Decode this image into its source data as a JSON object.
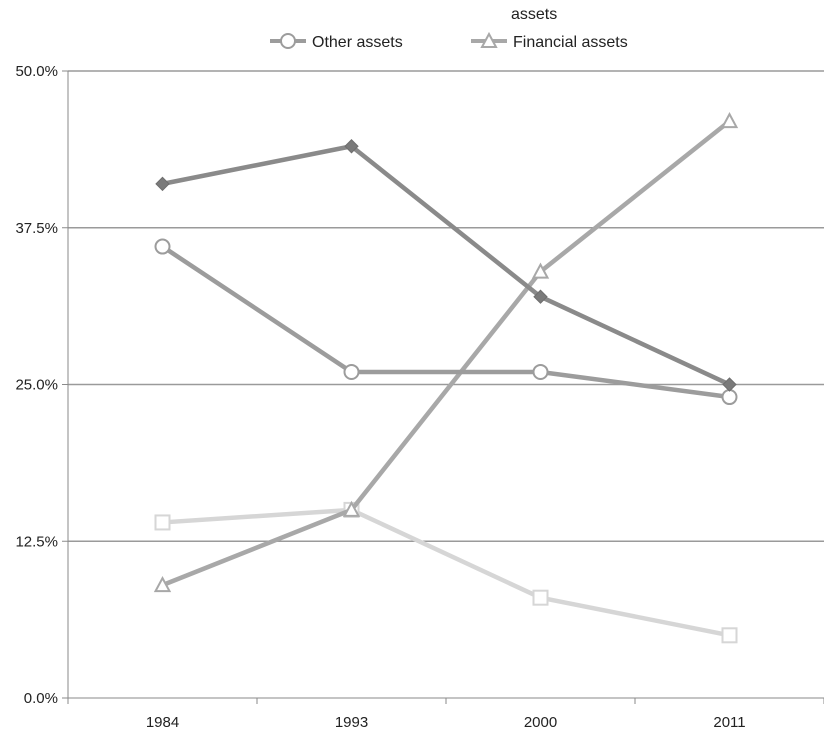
{
  "chart_data": {
    "type": "line",
    "categories": [
      "1984",
      "1993",
      "2000",
      "2011"
    ],
    "y_tick_labels": [
      "0.0%",
      "12.5%",
      "25.0%",
      "37.5%",
      "50.0%"
    ],
    "ylim": [
      0,
      50
    ],
    "y_unit": "%",
    "grid": "horizontal",
    "legend_position": "top",
    "legend_overflow_text": "assets",
    "series": [
      {
        "name": "",
        "marker": "diamond",
        "color": "#8a8a8a",
        "values": [
          41,
          44,
          32,
          25
        ]
      },
      {
        "name": "Other assets",
        "marker": "circle",
        "color": "#9c9c9c",
        "values": [
          36,
          26,
          26,
          24
        ]
      },
      {
        "name": "Financial assets",
        "marker": "triangle",
        "color": "#a8a8a8",
        "values": [
          9,
          15,
          34,
          46
        ]
      },
      {
        "name": "",
        "marker": "square",
        "color": "#d6d6d6",
        "values": [
          14,
          15,
          8,
          5
        ]
      }
    ]
  }
}
